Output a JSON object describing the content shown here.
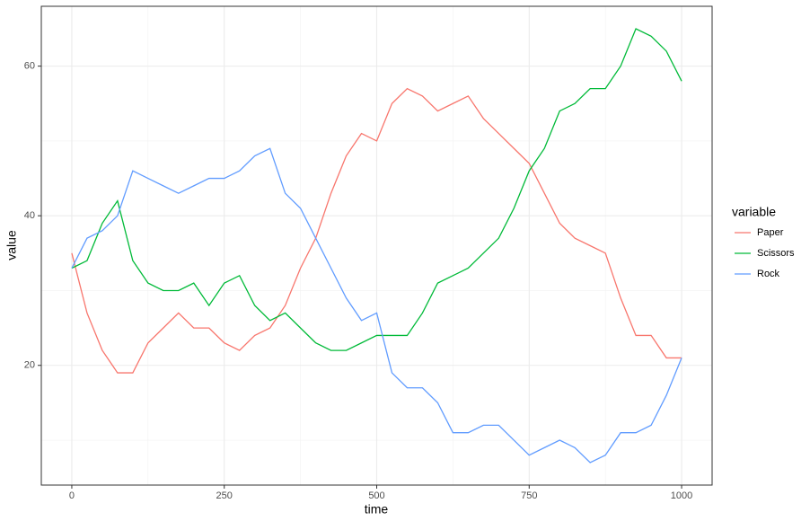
{
  "chart_data": {
    "type": "line",
    "x_label": "time",
    "y_label": "value",
    "legend_title": "variable",
    "x": [
      0,
      25,
      50,
      75,
      100,
      125,
      150,
      175,
      200,
      225,
      250,
      275,
      300,
      325,
      350,
      375,
      400,
      425,
      450,
      475,
      500,
      525,
      550,
      575,
      600,
      625,
      650,
      675,
      700,
      725,
      750,
      775,
      800,
      825,
      850,
      875,
      900,
      925,
      950,
      975,
      1000
    ],
    "series": [
      {
        "name": "Paper",
        "color": "#F8766D",
        "values": [
          35,
          27,
          22,
          19,
          19,
          23,
          25,
          27,
          25,
          25,
          23,
          22,
          24,
          25,
          28,
          33,
          37,
          43,
          48,
          51,
          50,
          55,
          57,
          56,
          54,
          55,
          56,
          53,
          51,
          49,
          47,
          43,
          39,
          37,
          36,
          35,
          29,
          24,
          24,
          21,
          21
        ]
      },
      {
        "name": "Scissors",
        "color": "#00BA38",
        "values": [
          33,
          34,
          39,
          42,
          34,
          31,
          30,
          30,
          31,
          28,
          31,
          32,
          28,
          26,
          27,
          25,
          23,
          22,
          22,
          23,
          24,
          24,
          24,
          27,
          31,
          32,
          33,
          35,
          37,
          41,
          46,
          49,
          54,
          55,
          57,
          57,
          60,
          65,
          64,
          62,
          58
        ]
      },
      {
        "name": "Rock",
        "color": "#619CFF",
        "values": [
          33,
          37,
          38,
          40,
          46,
          45,
          44,
          43,
          44,
          45,
          45,
          46,
          48,
          49,
          43,
          41,
          37,
          33,
          29,
          26,
          27,
          19,
          17,
          17,
          15,
          11,
          11,
          12,
          12,
          10,
          8,
          9,
          10,
          9,
          7,
          8,
          11,
          11,
          12,
          16,
          21
        ]
      }
    ],
    "xlim": [
      -50,
      1050
    ],
    "ylim": [
      4,
      68
    ],
    "xticks": [
      0,
      250,
      500,
      750,
      1000
    ],
    "yticks": [
      20,
      40,
      60
    ],
    "xminor": [
      125,
      375,
      625,
      875
    ],
    "yminor": [
      10,
      30,
      50
    ],
    "grid": true,
    "legend": "right"
  }
}
